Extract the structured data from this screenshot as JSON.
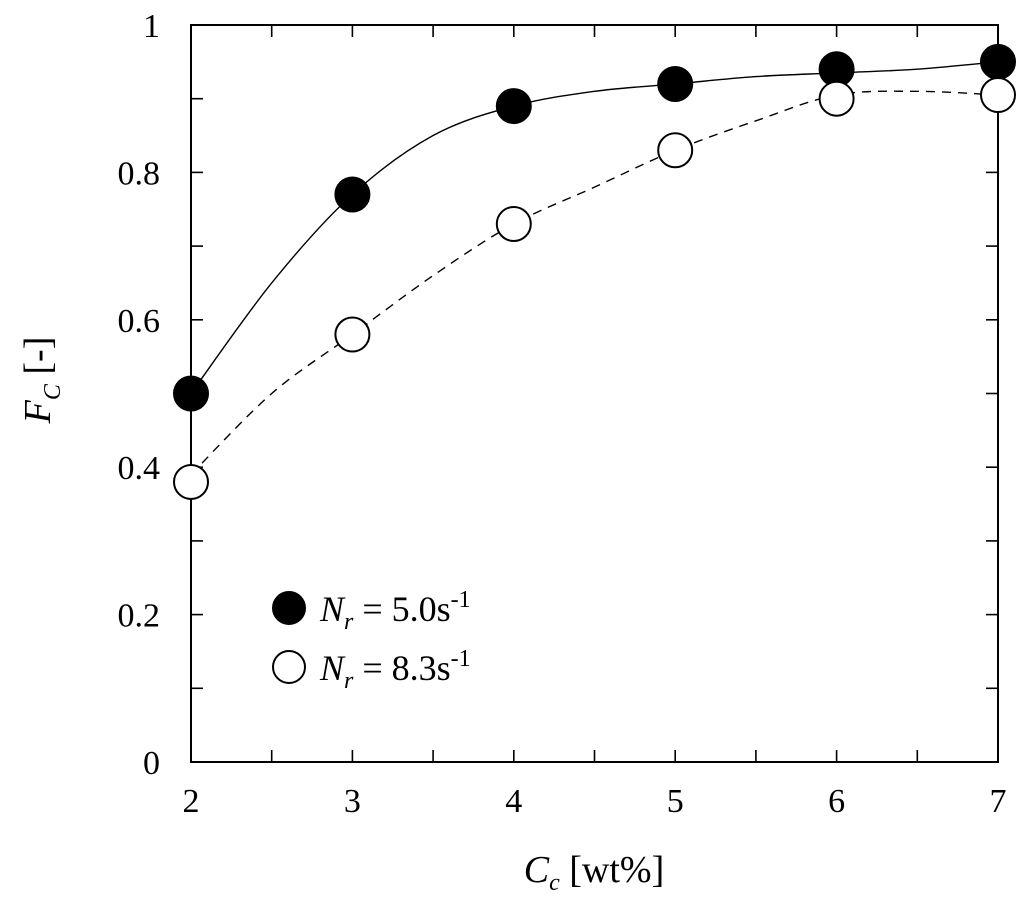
{
  "chart_data": {
    "type": "scatter",
    "xlabel": {
      "main": "C",
      "sub": "c",
      "rest": " [wt%]"
    },
    "ylabel": {
      "main": "F",
      "sub": "C",
      "rest": " [-]"
    },
    "xlim": [
      2,
      7
    ],
    "ylim": [
      0,
      1
    ],
    "x_ticks": [
      "2",
      "3",
      "4",
      "5",
      "6",
      "7"
    ],
    "y_ticks": [
      "0",
      "0.2",
      "0.4",
      "0.6",
      "0.8",
      "1"
    ],
    "legend_position": "lower-left",
    "series": [
      {
        "name": "Nr = 5.0s-1",
        "legend": {
          "sym": "N",
          "sub": "r",
          "eq": " = 5.0s",
          "sup": "-1"
        },
        "marker": "filled-circle",
        "line": "solid",
        "x": [
          2,
          3,
          4,
          5,
          6,
          7
        ],
        "y": [
          0.5,
          0.77,
          0.89,
          0.92,
          0.94,
          0.95
        ],
        "curve": [
          [
            2,
            0.5
          ],
          [
            2.5,
            0.65
          ],
          [
            3,
            0.77
          ],
          [
            3.5,
            0.85
          ],
          [
            4,
            0.89
          ],
          [
            4.5,
            0.91
          ],
          [
            5,
            0.92
          ],
          [
            5.5,
            0.93
          ],
          [
            6,
            0.935
          ],
          [
            6.5,
            0.94
          ],
          [
            7,
            0.95
          ]
        ]
      },
      {
        "name": "Nr = 8.3s-1",
        "legend": {
          "sym": "N",
          "sub": "r",
          "eq": " = 8.3s",
          "sup": "-1"
        },
        "marker": "open-circle",
        "line": "dashed",
        "x": [
          2,
          3,
          4,
          5,
          6,
          7
        ],
        "y": [
          0.38,
          0.58,
          0.73,
          0.83,
          0.9,
          0.905
        ],
        "curve": [
          [
            2,
            0.39
          ],
          [
            2.5,
            0.5
          ],
          [
            3,
            0.58
          ],
          [
            3.5,
            0.66
          ],
          [
            4,
            0.73
          ],
          [
            4.5,
            0.78
          ],
          [
            5,
            0.83
          ],
          [
            5.5,
            0.87
          ],
          [
            6,
            0.905
          ],
          [
            6.5,
            0.91
          ],
          [
            7,
            0.905
          ]
        ]
      }
    ]
  }
}
